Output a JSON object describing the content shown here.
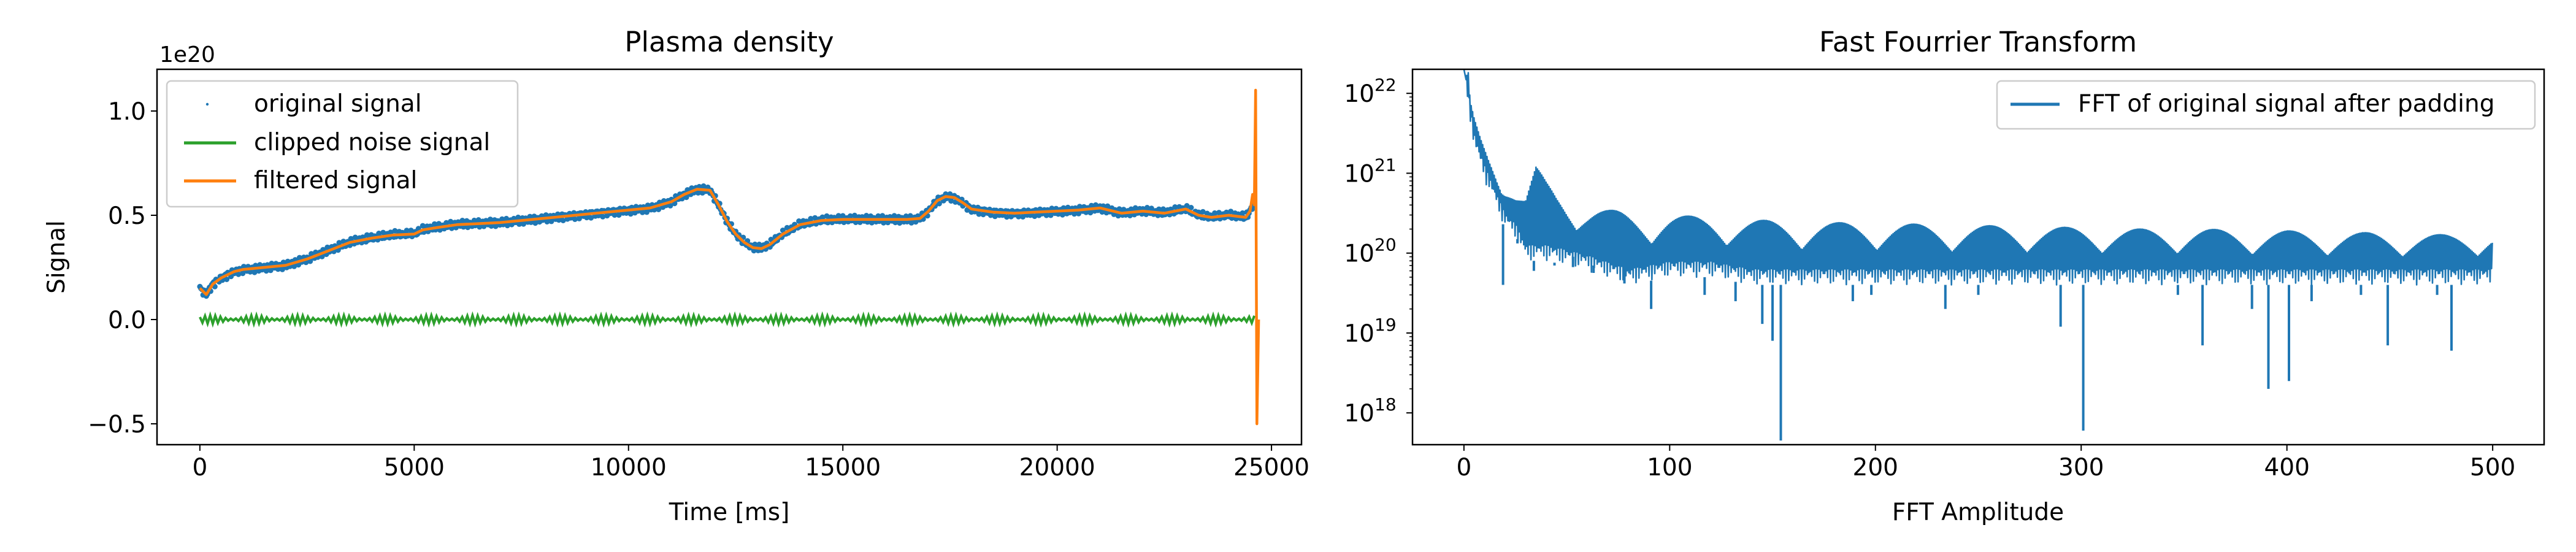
{
  "chart_data": [
    {
      "type": "line",
      "title": "Plasma density",
      "xlabel": "Time [ms]",
      "ylabel": "Signal",
      "y_scale_label": "1e20",
      "xlim": [
        -1000,
        25700
      ],
      "ylim": [
        -0.6,
        1.2
      ],
      "xticks": [
        0,
        5000,
        10000,
        15000,
        20000,
        25000
      ],
      "yticks": [
        -0.5,
        0.0,
        0.5,
        1.0
      ],
      "xtick_labels": [
        "0",
        "5000",
        "10000",
        "15000",
        "20000",
        "25000"
      ],
      "ytick_labels": [
        "−0.5",
        "0.0",
        "0.5",
        "1.0"
      ],
      "legend": {
        "location": "upper-left"
      },
      "grid": false,
      "series": [
        {
          "name": "original signal",
          "style": "markers",
          "color": "#1f77b4",
          "x": [
            0,
            150,
            300,
            500,
            800,
            1000,
            1500,
            2000,
            2500,
            3000,
            3500,
            4000,
            4500,
            5000,
            5200,
            5500,
            6000,
            6500,
            7000,
            7500,
            8000,
            8500,
            9000,
            9500,
            10000,
            10500,
            11000,
            11300,
            11600,
            11900,
            12100,
            12300,
            12500,
            12700,
            12900,
            13100,
            13300,
            13600,
            14000,
            14500,
            15000,
            15500,
            16000,
            16500,
            16800,
            17000,
            17200,
            17400,
            17600,
            17800,
            18000,
            18500,
            19000,
            19500,
            20000,
            20500,
            21000,
            21500,
            22000,
            22500,
            23000,
            23300,
            23600,
            24000,
            24400,
            24500,
            24600
          ],
          "y": [
            0.15,
            0.12,
            0.17,
            0.2,
            0.23,
            0.24,
            0.25,
            0.26,
            0.29,
            0.33,
            0.37,
            0.39,
            0.405,
            0.41,
            0.43,
            0.44,
            0.455,
            0.46,
            0.465,
            0.475,
            0.485,
            0.495,
            0.505,
            0.515,
            0.525,
            0.535,
            0.565,
            0.6,
            0.625,
            0.62,
            0.55,
            0.47,
            0.41,
            0.37,
            0.345,
            0.34,
            0.36,
            0.41,
            0.455,
            0.475,
            0.48,
            0.48,
            0.48,
            0.48,
            0.485,
            0.52,
            0.57,
            0.59,
            0.585,
            0.56,
            0.53,
            0.515,
            0.51,
            0.515,
            0.52,
            0.525,
            0.535,
            0.51,
            0.52,
            0.51,
            0.53,
            0.5,
            0.49,
            0.5,
            0.49,
            0.52,
            0.56
          ]
        },
        {
          "name": "clipped noise signal",
          "style": "line",
          "color": "#2ca02c",
          "x": [
            0,
            24600
          ],
          "y": [
            0.0,
            0.0
          ],
          "oscillation_amplitude": 0.02
        },
        {
          "name": "filtered signal",
          "style": "line",
          "color": "#ff7f0e",
          "x": [
            0,
            150,
            300,
            500,
            800,
            1000,
            1500,
            2000,
            2500,
            3000,
            3500,
            4000,
            4500,
            5000,
            5200,
            5500,
            6000,
            6500,
            7000,
            7500,
            8000,
            8500,
            9000,
            9500,
            10000,
            10500,
            11000,
            11300,
            11600,
            11900,
            12100,
            12300,
            12500,
            12700,
            12900,
            13100,
            13300,
            13600,
            14000,
            14500,
            15000,
            15500,
            16000,
            16500,
            16800,
            17000,
            17200,
            17400,
            17600,
            17800,
            18000,
            18500,
            19000,
            19500,
            20000,
            20500,
            21000,
            21500,
            22000,
            22500,
            23000,
            23300,
            23600,
            24000,
            24400,
            24500,
            24560,
            24600,
            24630,
            24660,
            24700
          ],
          "y": [
            0.15,
            0.12,
            0.17,
            0.2,
            0.23,
            0.24,
            0.25,
            0.26,
            0.29,
            0.33,
            0.37,
            0.39,
            0.405,
            0.41,
            0.43,
            0.44,
            0.455,
            0.46,
            0.465,
            0.475,
            0.485,
            0.495,
            0.505,
            0.515,
            0.525,
            0.535,
            0.565,
            0.6,
            0.625,
            0.62,
            0.55,
            0.47,
            0.41,
            0.37,
            0.345,
            0.34,
            0.36,
            0.41,
            0.455,
            0.475,
            0.48,
            0.48,
            0.48,
            0.48,
            0.485,
            0.52,
            0.57,
            0.59,
            0.585,
            0.56,
            0.53,
            0.515,
            0.51,
            0.515,
            0.52,
            0.525,
            0.535,
            0.51,
            0.52,
            0.51,
            0.53,
            0.5,
            0.49,
            0.5,
            0.49,
            0.52,
            0.6,
            0.55,
            1.1,
            -0.5,
            0.0
          ]
        }
      ]
    },
    {
      "type": "line",
      "title": "Fast Fourrier Transform",
      "xlabel": "FFT Amplitude",
      "ylabel": "",
      "y_scale": "log",
      "xlim": [
        -25,
        525
      ],
      "ylim": [
        4e+17,
        2e+22
      ],
      "xticks": [
        0,
        100,
        200,
        300,
        400,
        500
      ],
      "xtick_labels": [
        "0",
        "100",
        "200",
        "300",
        "400",
        "500"
      ],
      "yticks": [
        1e+18,
        1e+19,
        1e+20,
        1e+21,
        1e+22
      ],
      "ytick_labels": [
        {
          "base": "10",
          "exp": "18"
        },
        {
          "base": "10",
          "exp": "19"
        },
        {
          "base": "10",
          "exp": "20"
        },
        {
          "base": "10",
          "exp": "21"
        },
        {
          "base": "10",
          "exp": "22"
        }
      ],
      "legend": {
        "location": "upper-right"
      },
      "grid": false,
      "series": [
        {
          "name": "FFT of original signal after padding",
          "color": "#1f77b4",
          "upper_envelope": {
            "x": [
              0,
              1,
              2,
              3,
              5,
              8,
              12,
              16,
              20,
              25,
              30,
              35,
              40,
              45,
              50,
              60,
              70,
              80,
              90,
              100,
              120,
              140,
              160,
              180,
              200,
              220,
              240,
              260,
              280,
              300,
              320,
              340,
              360,
              380,
              400,
              420,
              440,
              460,
              480,
              500
            ],
            "y": [
              2e+22,
              1.5e+22,
              2e+22,
              8e+21,
              5e+21,
              3e+21,
              1.8e+21,
              1.2e+21,
              9e+20,
              6e+20,
              5e+20,
              1.2e+21,
              8e+20,
              6e+20,
              5e+20,
              4e+20,
              3.5e+20,
              3.2e+20,
              3e+20,
              3e+20,
              2.8e+20,
              2.6e+20,
              2.5e+20,
              2.4e+20,
              2.4e+20,
              2.3e+20,
              2.2e+20,
              2.2e+20,
              2.1e+20,
              2.1e+20,
              2e+20,
              2e+20,
              2e+20,
              1.9e+20,
              1.9e+20,
              1.8e+20,
              1.8e+20,
              1.7e+20,
              1.7e+20,
              1.8e+20
            ]
          },
          "lower_envelope": {
            "x": [
              0,
              5,
              10,
              15,
              20,
              25,
              30,
              40,
              50,
              60,
              80,
              100,
              120,
              140,
              160,
              180,
              200,
              220,
              240,
              260,
              280,
              300,
              320,
              340,
              360,
              380,
              400,
              420,
              440,
              460,
              480,
              500
            ],
            "y": [
              1.5e+22,
              2e+21,
              8e+20,
              4e+20,
              2e+20,
              1.5e+20,
              8e+19,
              8e+19,
              7e+19,
              6e+19,
              4e+19,
              5e+19,
              5e+19,
              4e+19,
              4e+19,
              4e+19,
              4e+19,
              4e+19,
              4e+19,
              4e+19,
              4e+19,
              4e+19,
              4e+19,
              4e+19,
              4e+19,
              4e+19,
              4e+19,
              4e+19,
              4e+19,
              4e+19,
              4e+19,
              4e+19
            ]
          },
          "dips": [
            {
              "x": 19,
              "y": 4e+19
            },
            {
              "x": 26,
              "y": 1.5e+20
            },
            {
              "x": 34,
              "y": 6e+19
            },
            {
              "x": 44,
              "y": 7e+19
            },
            {
              "x": 53,
              "y": 9e+19
            },
            {
              "x": 63,
              "y": 7e+19
            },
            {
              "x": 78,
              "y": 8e+19
            },
            {
              "x": 91,
              "y": 2e+19
            },
            {
              "x": 117,
              "y": 3e+19
            },
            {
              "x": 132,
              "y": 2.5e+19
            },
            {
              "x": 145,
              "y": 1.3e+19
            },
            {
              "x": 150,
              "y": 8e+18
            },
            {
              "x": 154,
              "y": 4.5e+17
            },
            {
              "x": 171,
              "y": 4e+19
            },
            {
              "x": 189,
              "y": 2.5e+19
            },
            {
              "x": 198,
              "y": 3e+19
            },
            {
              "x": 216,
              "y": 4e+19
            },
            {
              "x": 234,
              "y": 2e+19
            },
            {
              "x": 250,
              "y": 3e+19
            },
            {
              "x": 272,
              "y": 4e+19
            },
            {
              "x": 290,
              "y": 1.2e+19
            },
            {
              "x": 301,
              "y": 6e+17
            },
            {
              "x": 318,
              "y": 4e+19
            },
            {
              "x": 347,
              "y": 3e+19
            },
            {
              "x": 359,
              "y": 7e+18
            },
            {
              "x": 371,
              "y": 4e+19
            },
            {
              "x": 383,
              "y": 2e+19
            },
            {
              "x": 391,
              "y": 2e+18
            },
            {
              "x": 401,
              "y": 2.5e+18
            },
            {
              "x": 412,
              "y": 2.5e+19
            },
            {
              "x": 436,
              "y": 3e+19
            },
            {
              "x": 449,
              "y": 7e+18
            },
            {
              "x": 473,
              "y": 3e+19
            },
            {
              "x": 480,
              "y": 6e+18
            },
            {
              "x": 494,
              "y": 4e+19
            }
          ]
        }
      ]
    }
  ]
}
